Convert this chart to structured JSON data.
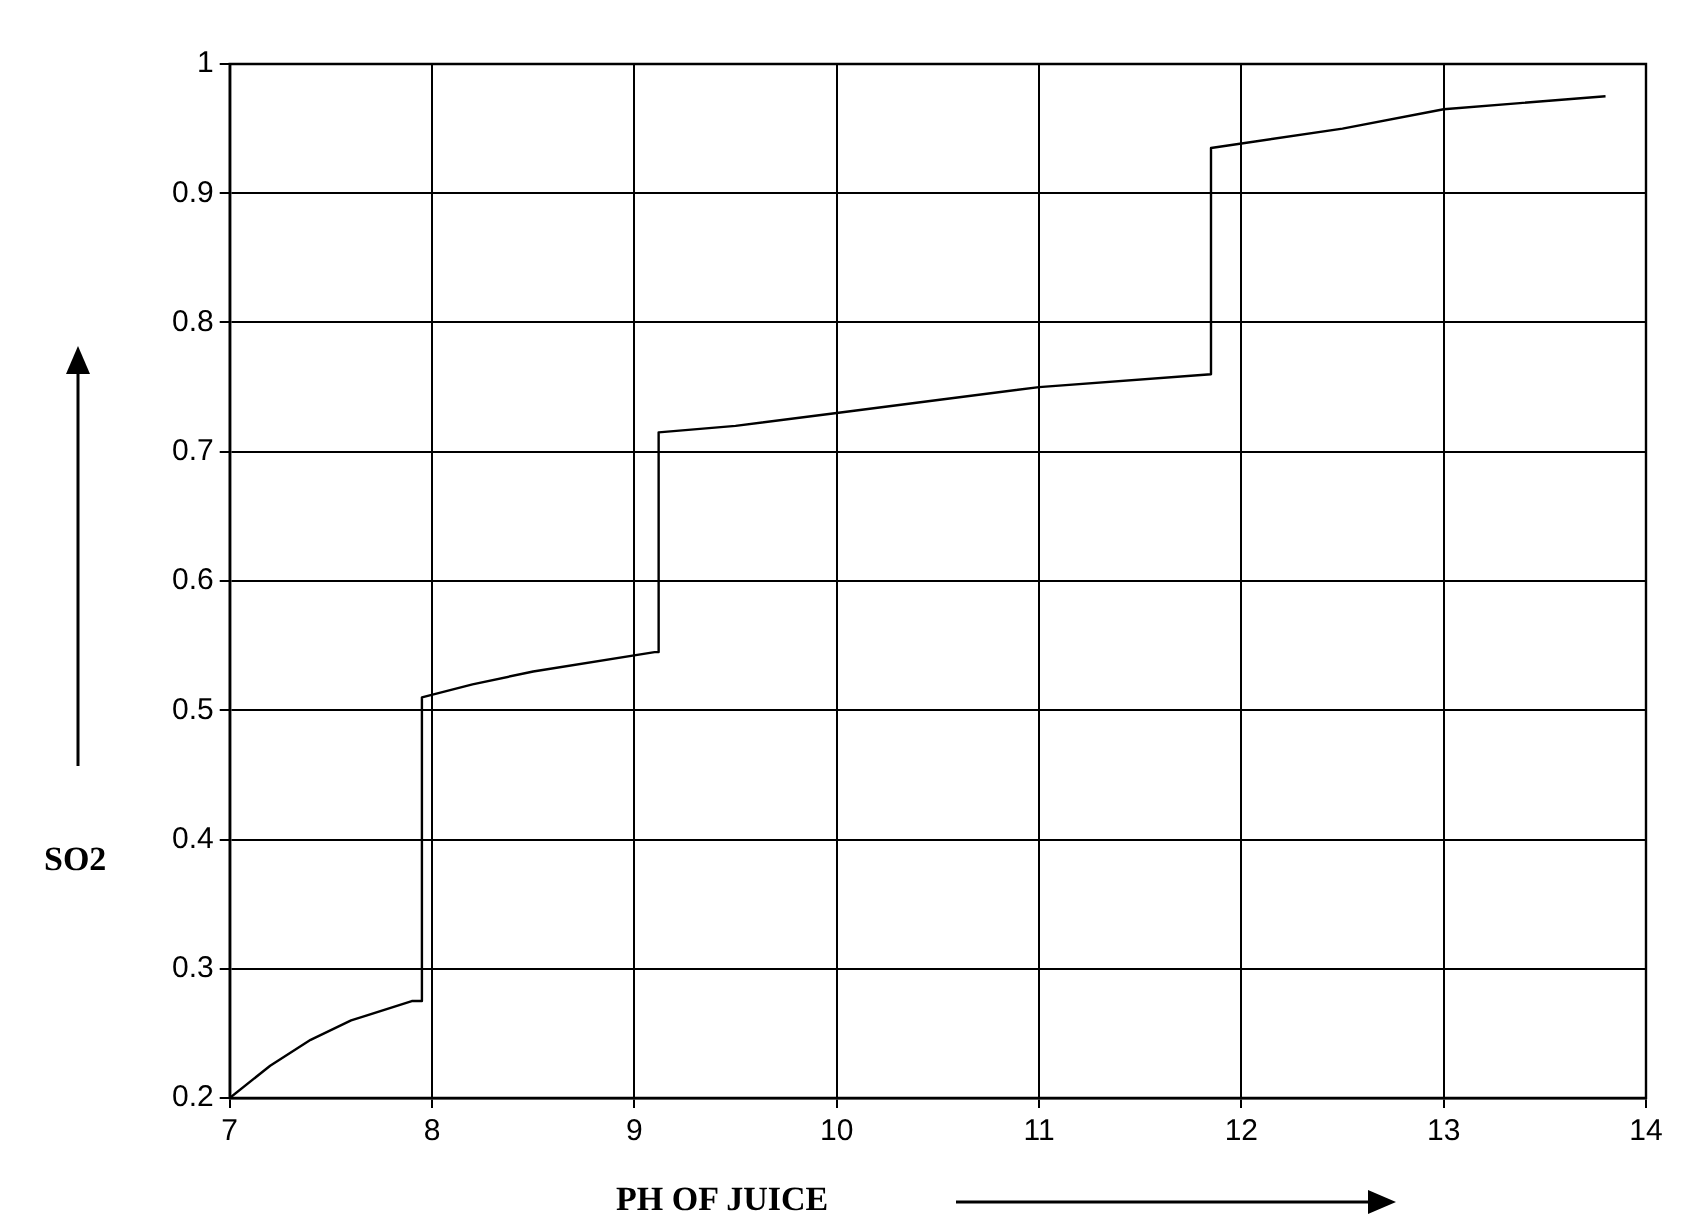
{
  "chart_data": {
    "type": "line",
    "xlabel": "PH OF JUICE",
    "ylabel": "SO2",
    "x": [
      7,
      7.2,
      7.4,
      7.6,
      7.9,
      7.95,
      7.95,
      8.2,
      8.5,
      9.1,
      9.12,
      9.12,
      9.5,
      10,
      10.5,
      11,
      11.85,
      11.85,
      12.5,
      13,
      13.8
    ],
    "series": [
      {
        "color": "#000000",
        "values": [
          0.2,
          0.225,
          0.245,
          0.26,
          0.275,
          0.275,
          0.51,
          0.52,
          0.53,
          0.545,
          0.545,
          0.715,
          0.72,
          0.73,
          0.74,
          0.75,
          0.76,
          0.935,
          0.95,
          0.965,
          0.975
        ]
      }
    ],
    "xlim": [
      7,
      14
    ],
    "xticks": [
      7,
      8,
      9,
      10,
      11,
      12,
      13,
      14
    ],
    "ylim": [
      0.2,
      1
    ],
    "yticks": [
      0.2,
      0.3,
      0.4,
      0.5,
      0.6,
      0.7,
      0.8,
      0.9,
      1
    ],
    "grid": true,
    "line_style": "solid",
    "marker": "none",
    "legend": false
  }
}
